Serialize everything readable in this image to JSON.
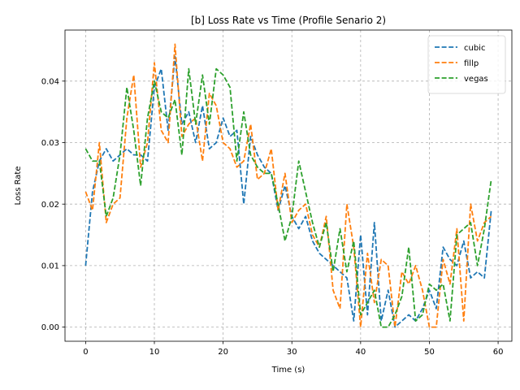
{
  "chart_data": {
    "type": "line",
    "title": "[b] Loss Rate vs Time (Profile Senario 2)",
    "xlabel": "Time (s)",
    "ylabel": "Loss Rate",
    "xlim": [
      -3,
      62
    ],
    "ylim": [
      -0.0023,
      0.0483
    ],
    "xticks": [
      0,
      10,
      20,
      30,
      40,
      50,
      60
    ],
    "xtick_labels": [
      "0",
      "10",
      "20",
      "30",
      "40",
      "50",
      "60"
    ],
    "yticks": [
      0.0,
      0.01,
      0.02,
      0.03,
      0.04
    ],
    "ytick_labels": [
      "0.00",
      "0.01",
      "0.02",
      "0.03",
      "0.04"
    ],
    "grid": true,
    "grid_style": "dashed",
    "line_style": "dashed",
    "legend_position": "top-right",
    "x": [
      0,
      1,
      2,
      3,
      4,
      5,
      6,
      7,
      8,
      9,
      10,
      11,
      12,
      13,
      14,
      15,
      16,
      17,
      18,
      19,
      20,
      21,
      22,
      23,
      24,
      25,
      26,
      27,
      28,
      29,
      30,
      31,
      32,
      33,
      34,
      35,
      36,
      37,
      38,
      39,
      40,
      41,
      42,
      43,
      44,
      45,
      46,
      47,
      48,
      49,
      50,
      51,
      52,
      53,
      54,
      55,
      56,
      57,
      58,
      59
    ],
    "series": [
      {
        "name": "cubic",
        "color": "#1f77b4",
        "values": [
          0.01,
          0.022,
          0.027,
          0.029,
          0.027,
          0.028,
          0.029,
          0.028,
          0.028,
          0.027,
          0.039,
          0.042,
          0.032,
          0.044,
          0.033,
          0.035,
          0.03,
          0.036,
          0.029,
          0.03,
          0.034,
          0.031,
          0.032,
          0.02,
          0.031,
          0.028,
          0.026,
          0.025,
          0.019,
          0.023,
          0.018,
          0.016,
          0.018,
          0.014,
          0.012,
          0.011,
          0.01,
          0.009,
          0.008,
          0.001,
          0.015,
          0.002,
          0.017,
          0.001,
          0.006,
          0.0,
          0.001,
          0.002,
          0.001,
          0.003,
          0.006,
          0.003,
          0.013,
          0.011,
          0.01,
          0.014,
          0.008,
          0.009,
          0.008,
          0.019
        ]
      },
      {
        "name": "fillp",
        "color": "#ff7f0e",
        "values": [
          0.022,
          0.019,
          0.03,
          0.017,
          0.02,
          0.021,
          0.034,
          0.041,
          0.026,
          0.03,
          0.043,
          0.032,
          0.03,
          0.046,
          0.031,
          0.033,
          0.034,
          0.027,
          0.038,
          0.036,
          0.03,
          0.029,
          0.026,
          0.027,
          0.033,
          0.024,
          0.025,
          0.029,
          0.019,
          0.025,
          0.017,
          0.019,
          0.02,
          0.015,
          0.013,
          0.018,
          0.006,
          0.003,
          0.02,
          0.013,
          0.0,
          0.012,
          0.004,
          0.011,
          0.01,
          0.0,
          0.009,
          0.007,
          0.01,
          0.006,
          0.0,
          0.0,
          0.011,
          0.007,
          0.016,
          0.001,
          0.02,
          0.014,
          0.017,
          0.018
        ]
      },
      {
        "name": "vegas",
        "color": "#2ca02c",
        "values": [
          0.029,
          0.027,
          0.027,
          0.018,
          0.021,
          0.028,
          0.039,
          0.032,
          0.023,
          0.034,
          0.04,
          0.035,
          0.034,
          0.037,
          0.028,
          0.042,
          0.033,
          0.041,
          0.033,
          0.042,
          0.041,
          0.039,
          0.027,
          0.035,
          0.028,
          0.026,
          0.025,
          0.025,
          0.02,
          0.014,
          0.018,
          0.027,
          0.022,
          0.017,
          0.013,
          0.017,
          0.009,
          0.016,
          0.009,
          0.014,
          0.002,
          0.004,
          0.006,
          0.0,
          0.0,
          0.002,
          0.005,
          0.013,
          0.001,
          0.002,
          0.007,
          0.006,
          0.007,
          0.001,
          0.015,
          0.016,
          0.017,
          0.01,
          0.016,
          0.024
        ]
      }
    ]
  }
}
